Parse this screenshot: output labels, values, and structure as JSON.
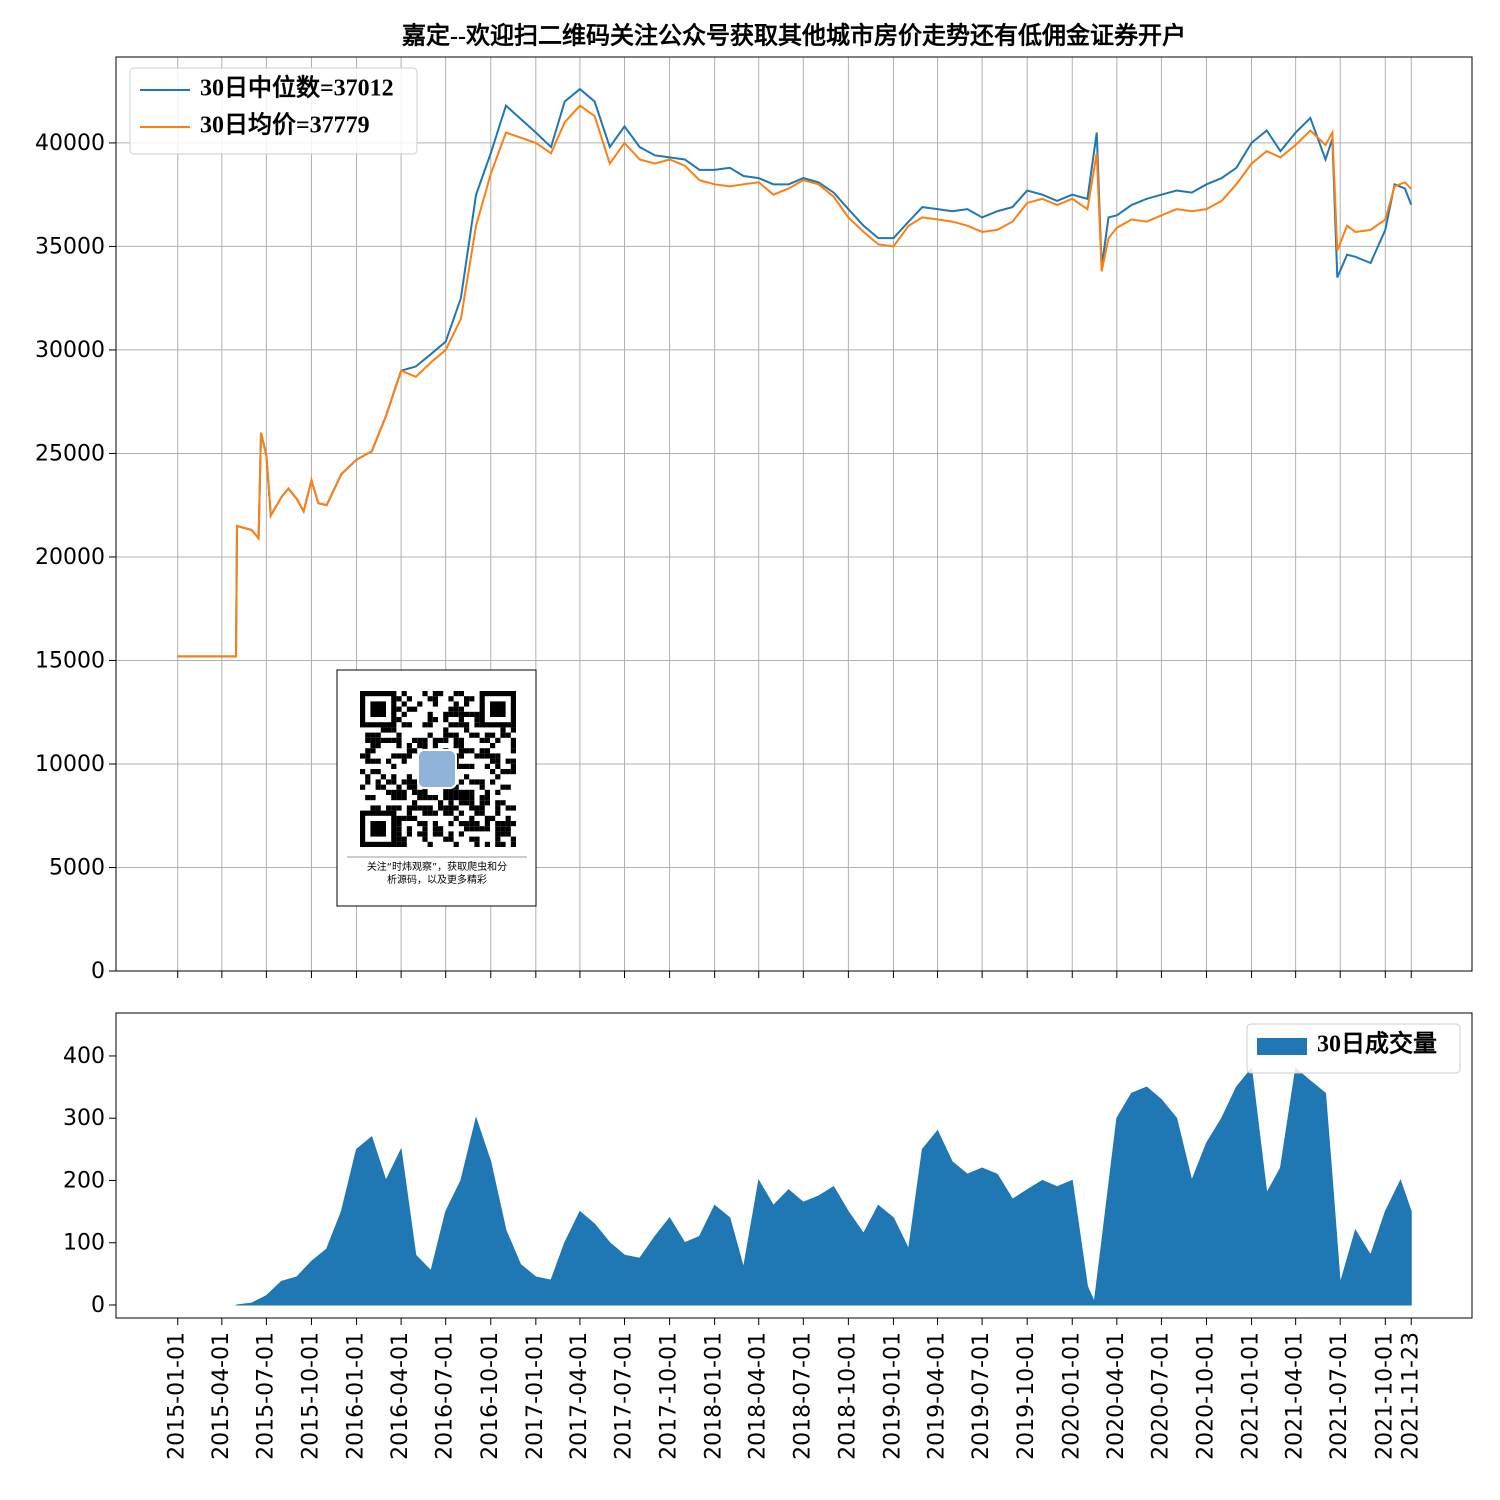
{
  "chart_data": [
    {
      "type": "line",
      "title": "嘉定--欢迎扫二维码关注公众号获取其他城市房价走势还有低佣金证券开户",
      "x": [
        "2015-01-01",
        "2015-04-30",
        "2015-05-02",
        "2015-06-01",
        "2015-06-15",
        "2015-06-20",
        "2015-07-01",
        "2015-07-10",
        "2015-08-01",
        "2015-08-15",
        "2015-09-01",
        "2015-09-15",
        "2015-10-01",
        "2015-10-15",
        "2015-11-01",
        "2015-12-01",
        "2016-01-01",
        "2016-02-01",
        "2016-03-01",
        "2016-04-01",
        "2016-05-01",
        "2016-06-01",
        "2016-07-01",
        "2016-08-01",
        "2016-09-01",
        "2016-10-01",
        "2016-11-01",
        "2017-01-01",
        "2017-02-01",
        "2017-03-01",
        "2017-04-01",
        "2017-05-01",
        "2017-06-01",
        "2017-07-01",
        "2017-08-01",
        "2017-09-01",
        "2017-10-01",
        "2017-11-01",
        "2017-12-01",
        "2018-01-01",
        "2018-02-01",
        "2018-03-01",
        "2018-04-01",
        "2018-05-01",
        "2018-06-01",
        "2018-07-01",
        "2018-08-01",
        "2018-09-01",
        "2018-10-01",
        "2018-11-01",
        "2018-12-01",
        "2019-01-01",
        "2019-02-01",
        "2019-03-01",
        "2019-04-01",
        "2019-05-01",
        "2019-06-01",
        "2019-07-01",
        "2019-08-01",
        "2019-09-01",
        "2019-10-01",
        "2019-11-01",
        "2019-12-01",
        "2020-01-01",
        "2020-02-01",
        "2020-02-20",
        "2020-03-01",
        "2020-03-15",
        "2020-04-01",
        "2020-05-01",
        "2020-06-01",
        "2020-07-01",
        "2020-08-01",
        "2020-09-01",
        "2020-10-01",
        "2020-11-01",
        "2020-12-01",
        "2021-01-01",
        "2021-02-01",
        "2021-03-01",
        "2021-04-01",
        "2021-05-01",
        "2021-06-01",
        "2021-06-15",
        "2021-06-25",
        "2021-07-15",
        "2021-08-01",
        "2021-09-01",
        "2021-10-01",
        "2021-10-20",
        "2021-11-10",
        "2021-11-23"
      ],
      "series": [
        {
          "name": "30日中位数=37012",
          "color": "#1f77b4",
          "values": [
            15200,
            15200,
            21500,
            21300,
            20900,
            26000,
            24900,
            22000,
            22900,
            23300,
            22800,
            22200,
            23700,
            22600,
            22500,
            24000,
            24700,
            25100,
            26800,
            29000,
            29200,
            29800,
            30400,
            32500,
            37500,
            39500,
            41800,
            40500,
            39800,
            42000,
            42600,
            42000,
            39800,
            40800,
            39800,
            39400,
            39300,
            39200,
            38700,
            38700,
            38800,
            38400,
            38300,
            38000,
            38000,
            38300,
            38100,
            37600,
            36800,
            36000,
            35400,
            35400,
            36200,
            36900,
            36800,
            36700,
            36800,
            36400,
            36700,
            36900,
            37700,
            37500,
            37200,
            37500,
            37300,
            40500,
            34000,
            36400,
            36500,
            37000,
            37300,
            37500,
            37700,
            37600,
            38000,
            38300,
            38800,
            40000,
            40600,
            39600,
            40500,
            41200,
            39200,
            40200,
            33500,
            34600,
            34500,
            34200,
            35800,
            38000,
            37800,
            37012
          ]
        },
        {
          "name": "30日均价=37779",
          "color": "#ff7f0e",
          "values": [
            15200,
            15200,
            21500,
            21300,
            20900,
            26000,
            24900,
            22000,
            22900,
            23300,
            22800,
            22200,
            23700,
            22600,
            22500,
            24000,
            24700,
            25100,
            26800,
            29000,
            28700,
            29400,
            30000,
            31500,
            36000,
            38500,
            40500,
            40000,
            39500,
            41000,
            41800,
            41300,
            39000,
            40000,
            39200,
            39000,
            39200,
            38900,
            38200,
            38000,
            37900,
            38000,
            38100,
            37500,
            37800,
            38200,
            38000,
            37400,
            36400,
            35700,
            35100,
            35000,
            36000,
            36400,
            36300,
            36200,
            36000,
            35700,
            35800,
            36200,
            37100,
            37300,
            37000,
            37300,
            36800,
            39500,
            33800,
            35400,
            35900,
            36300,
            36200,
            36500,
            36800,
            36700,
            36800,
            37200,
            38000,
            39000,
            39600,
            39300,
            39900,
            40600,
            39900,
            40500,
            34800,
            36000,
            35700,
            35800,
            36300,
            37900,
            38100,
            37779
          ]
        }
      ],
      "xlim": [
        "2014-08-28",
        "2022-03-27"
      ],
      "xticks": [
        "2015-01-01",
        "2015-04-01",
        "2015-07-01",
        "2015-10-01",
        "2016-01-01",
        "2016-04-01",
        "2016-07-01",
        "2016-10-01",
        "2017-01-01",
        "2017-04-01",
        "2017-07-01",
        "2017-10-01",
        "2018-01-01",
        "2018-04-01",
        "2018-07-01",
        "2018-10-01",
        "2019-01-01",
        "2019-04-01",
        "2019-07-01",
        "2019-10-01",
        "2020-01-01",
        "2020-04-01",
        "2020-07-01",
        "2020-10-01",
        "2021-01-01",
        "2021-04-01",
        "2021-07-01",
        "2021-10-01",
        "2021-11-23"
      ],
      "ylim": [
        0,
        44150
      ],
      "yticks": [
        0,
        5000,
        10000,
        15000,
        20000,
        25000,
        30000,
        35000,
        40000
      ],
      "grid": true,
      "legend": "upper left"
    },
    {
      "type": "area",
      "x": [
        "2015-05-01",
        "2015-06-01",
        "2015-07-01",
        "2015-08-01",
        "2015-09-01",
        "2015-10-01",
        "2015-11-01",
        "2015-12-01",
        "2016-01-01",
        "2016-02-01",
        "2016-03-01",
        "2016-04-01",
        "2016-05-01",
        "2016-06-01",
        "2016-07-01",
        "2016-08-01",
        "2016-09-01",
        "2016-10-01",
        "2016-11-01",
        "2016-12-01",
        "2017-01-01",
        "2017-02-01",
        "2017-03-01",
        "2017-04-01",
        "2017-05-01",
        "2017-06-01",
        "2017-07-01",
        "2017-08-01",
        "2017-09-01",
        "2017-10-01",
        "2017-11-01",
        "2017-12-01",
        "2018-01-01",
        "2018-02-01",
        "2018-03-01",
        "2018-04-01",
        "2018-05-01",
        "2018-06-01",
        "2018-07-01",
        "2018-08-01",
        "2018-09-01",
        "2018-10-01",
        "2018-11-01",
        "2018-12-01",
        "2019-01-01",
        "2019-02-01",
        "2019-03-01",
        "2019-04-01",
        "2019-05-01",
        "2019-06-01",
        "2019-07-01",
        "2019-08-01",
        "2019-09-01",
        "2019-10-01",
        "2019-11-01",
        "2019-12-01",
        "2020-01-01",
        "2020-02-01",
        "2020-02-15",
        "2020-03-01",
        "2020-04-01",
        "2020-05-01",
        "2020-06-01",
        "2020-07-01",
        "2020-08-01",
        "2020-09-01",
        "2020-10-01",
        "2020-11-01",
        "2020-12-01",
        "2021-01-01",
        "2021-02-01",
        "2021-03-01",
        "2021-04-01",
        "2021-05-01",
        "2021-06-01",
        "2021-06-15",
        "2021-07-01",
        "2021-08-01",
        "2021-09-01",
        "2021-10-01",
        "2021-11-01",
        "2021-11-23"
      ],
      "series": [
        {
          "name": "30日成交量",
          "color": "#1f77b4",
          "values": [
            0,
            3,
            15,
            38,
            45,
            70,
            90,
            150,
            250,
            270,
            200,
            250,
            80,
            55,
            150,
            200,
            300,
            230,
            120,
            65,
            45,
            40,
            100,
            150,
            130,
            100,
            80,
            75,
            110,
            140,
            100,
            110,
            160,
            140,
            60,
            200,
            160,
            185,
            165,
            175,
            190,
            150,
            115,
            160,
            140,
            90,
            250,
            280,
            230,
            210,
            220,
            210,
            170,
            185,
            200,
            190,
            200,
            30,
            5,
            100,
            300,
            340,
            350,
            330,
            300,
            200,
            260,
            300,
            350,
            380,
            180,
            220,
            380,
            360,
            340,
            200,
            35,
            120,
            80,
            150,
            200,
            150
          ]
        }
      ],
      "xlim": [
        "2014-08-28",
        "2022-03-27"
      ],
      "xticks": [
        "2015-01-01",
        "2015-04-01",
        "2015-07-01",
        "2015-10-01",
        "2016-01-01",
        "2016-04-01",
        "2016-07-01",
        "2016-10-01",
        "2017-01-01",
        "2017-04-01",
        "2017-07-01",
        "2017-10-01",
        "2018-01-01",
        "2018-04-01",
        "2018-07-01",
        "2018-10-01",
        "2019-01-01",
        "2019-04-01",
        "2019-07-01",
        "2019-10-01",
        "2020-01-01",
        "2020-04-01",
        "2020-07-01",
        "2020-10-01",
        "2021-01-01",
        "2021-04-01",
        "2021-07-01",
        "2021-10-01",
        "2021-11-23"
      ],
      "ylim": [
        -20.9,
        469
      ],
      "yticks": [
        0,
        100,
        200,
        300,
        400
      ],
      "grid": false,
      "legend": "upper right"
    }
  ],
  "overlay": {
    "caption": "关注“时炜观察”，获取爬虫和分析源码，以及更多精彩"
  }
}
